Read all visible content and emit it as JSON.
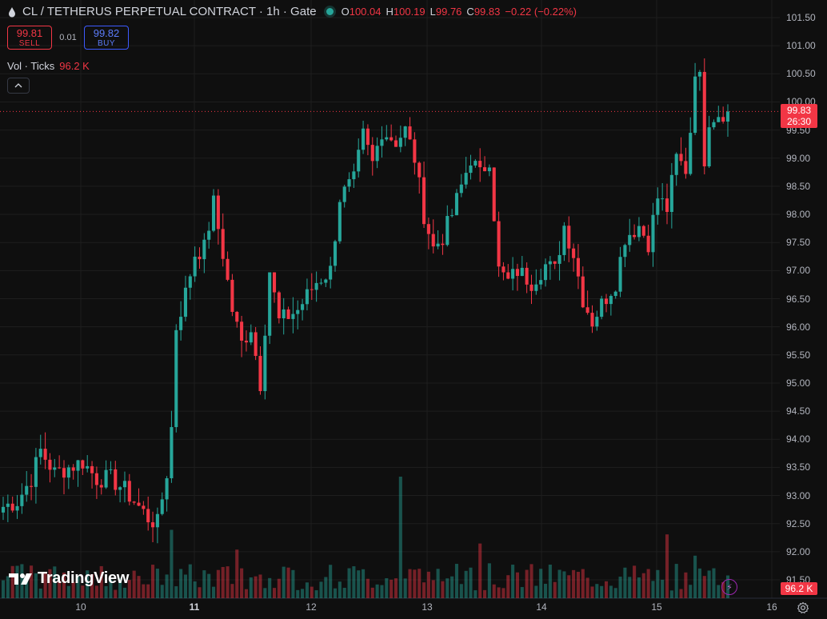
{
  "header": {
    "title": "CL / TETHERUS PERPETUAL CONTRACT · 1h · Gate",
    "ohlc": [
      {
        "k": "O",
        "v": "100.04"
      },
      {
        "k": "H",
        "v": "100.19"
      },
      {
        "k": "L",
        "v": "99.76"
      },
      {
        "k": "C",
        "v": "99.83"
      }
    ],
    "change": "−0.22 (−0.22%)"
  },
  "trade": {
    "sell_price": "99.81",
    "sell_label": "SELL",
    "spread": "0.01",
    "buy_price": "99.82",
    "buy_label": "BUY"
  },
  "volume": {
    "label": "Vol · Ticks",
    "value": "96.2 K"
  },
  "price_axis": [
    "101.50",
    "101.00",
    "100.50",
    "100.00",
    "99.50",
    "99.00",
    "98.50",
    "98.00",
    "97.50",
    "97.00",
    "96.50",
    "96.00",
    "95.50",
    "95.00",
    "94.50",
    "94.00",
    "93.50",
    "93.00",
    "92.50",
    "92.00",
    "91.50"
  ],
  "time_axis": [
    {
      "label": "10",
      "bold": false
    },
    {
      "label": "11",
      "bold": true
    },
    {
      "label": "12",
      "bold": false
    },
    {
      "label": "13",
      "bold": false
    },
    {
      "label": "14",
      "bold": false
    },
    {
      "label": "15",
      "bold": false
    },
    {
      "label": "16",
      "bold": false
    }
  ],
  "last_price": {
    "price": "99.83",
    "countdown": "26:30"
  },
  "volume_badge": "96.2 K",
  "brand": "TradingView",
  "colors": {
    "up": "#26a69a",
    "down": "#f23645",
    "background": "#0f0f0f",
    "grid": "#1e1e1e"
  },
  "chart_data": {
    "type": "candlestick",
    "y_range": [
      91.4,
      101.7
    ],
    "current_price": 99.83,
    "keypoints": [
      [
        0,
        92.8
      ],
      [
        3,
        92.9
      ],
      [
        6,
        93.3
      ],
      [
        8,
        93.8
      ],
      [
        11,
        93.4
      ],
      [
        14,
        93.5
      ],
      [
        17,
        93.6
      ],
      [
        20,
        93.3
      ],
      [
        23,
        93.3
      ],
      [
        26,
        93.1
      ],
      [
        29,
        92.8
      ],
      [
        31,
        92.6
      ],
      [
        33,
        92.5
      ],
      [
        35,
        93.4
      ],
      [
        36,
        94.2
      ],
      [
        37,
        96.0
      ],
      [
        39,
        96.6
      ],
      [
        41,
        97.3
      ],
      [
        43,
        97.4
      ],
      [
        45,
        98.2
      ],
      [
        47,
        97.3
      ],
      [
        49,
        96.3
      ],
      [
        51,
        95.7
      ],
      [
        53,
        96.0
      ],
      [
        55,
        95.0
      ],
      [
        57,
        97.0
      ],
      [
        59,
        96.1
      ],
      [
        63,
        96.3
      ],
      [
        67,
        96.8
      ],
      [
        70,
        97.0
      ],
      [
        72,
        98.3
      ],
      [
        75,
        98.6
      ],
      [
        77,
        99.4
      ],
      [
        79,
        98.9
      ],
      [
        81,
        99.5
      ],
      [
        84,
        99.3
      ],
      [
        86,
        99.5
      ],
      [
        88,
        99.0
      ],
      [
        90,
        98.0
      ],
      [
        92,
        97.4
      ],
      [
        94,
        97.6
      ],
      [
        96,
        98.0
      ],
      [
        98,
        98.5
      ],
      [
        100,
        99.0
      ],
      [
        102,
        98.7
      ],
      [
        104,
        99.0
      ],
      [
        106,
        97.0
      ],
      [
        108,
        96.8
      ],
      [
        110,
        97.0
      ],
      [
        113,
        96.8
      ],
      [
        116,
        97.1
      ],
      [
        118,
        97.0
      ],
      [
        120,
        97.8
      ],
      [
        122,
        97.3
      ],
      [
        124,
        96.5
      ],
      [
        126,
        96.1
      ],
      [
        128,
        96.4
      ],
      [
        131,
        96.8
      ],
      [
        133,
        97.6
      ],
      [
        136,
        97.8
      ],
      [
        138,
        97.5
      ],
      [
        140,
        98.3
      ],
      [
        142,
        98.1
      ],
      [
        144,
        99.0
      ],
      [
        146,
        98.8
      ],
      [
        147,
        99.5
      ],
      [
        148,
        100.6
      ],
      [
        149,
        100.4
      ],
      [
        150,
        99.0
      ],
      [
        151,
        99.7
      ],
      [
        153,
        99.8
      ],
      [
        155,
        99.83
      ]
    ],
    "volume_spikes": [
      {
        "i": 36,
        "v": 0.45
      },
      {
        "i": 50,
        "v": 0.32
      },
      {
        "i": 85,
        "v": 0.8
      },
      {
        "i": 102,
        "v": 0.36
      },
      {
        "i": 142,
        "v": 0.42
      },
      {
        "i": 148,
        "v": 0.28
      }
    ]
  }
}
